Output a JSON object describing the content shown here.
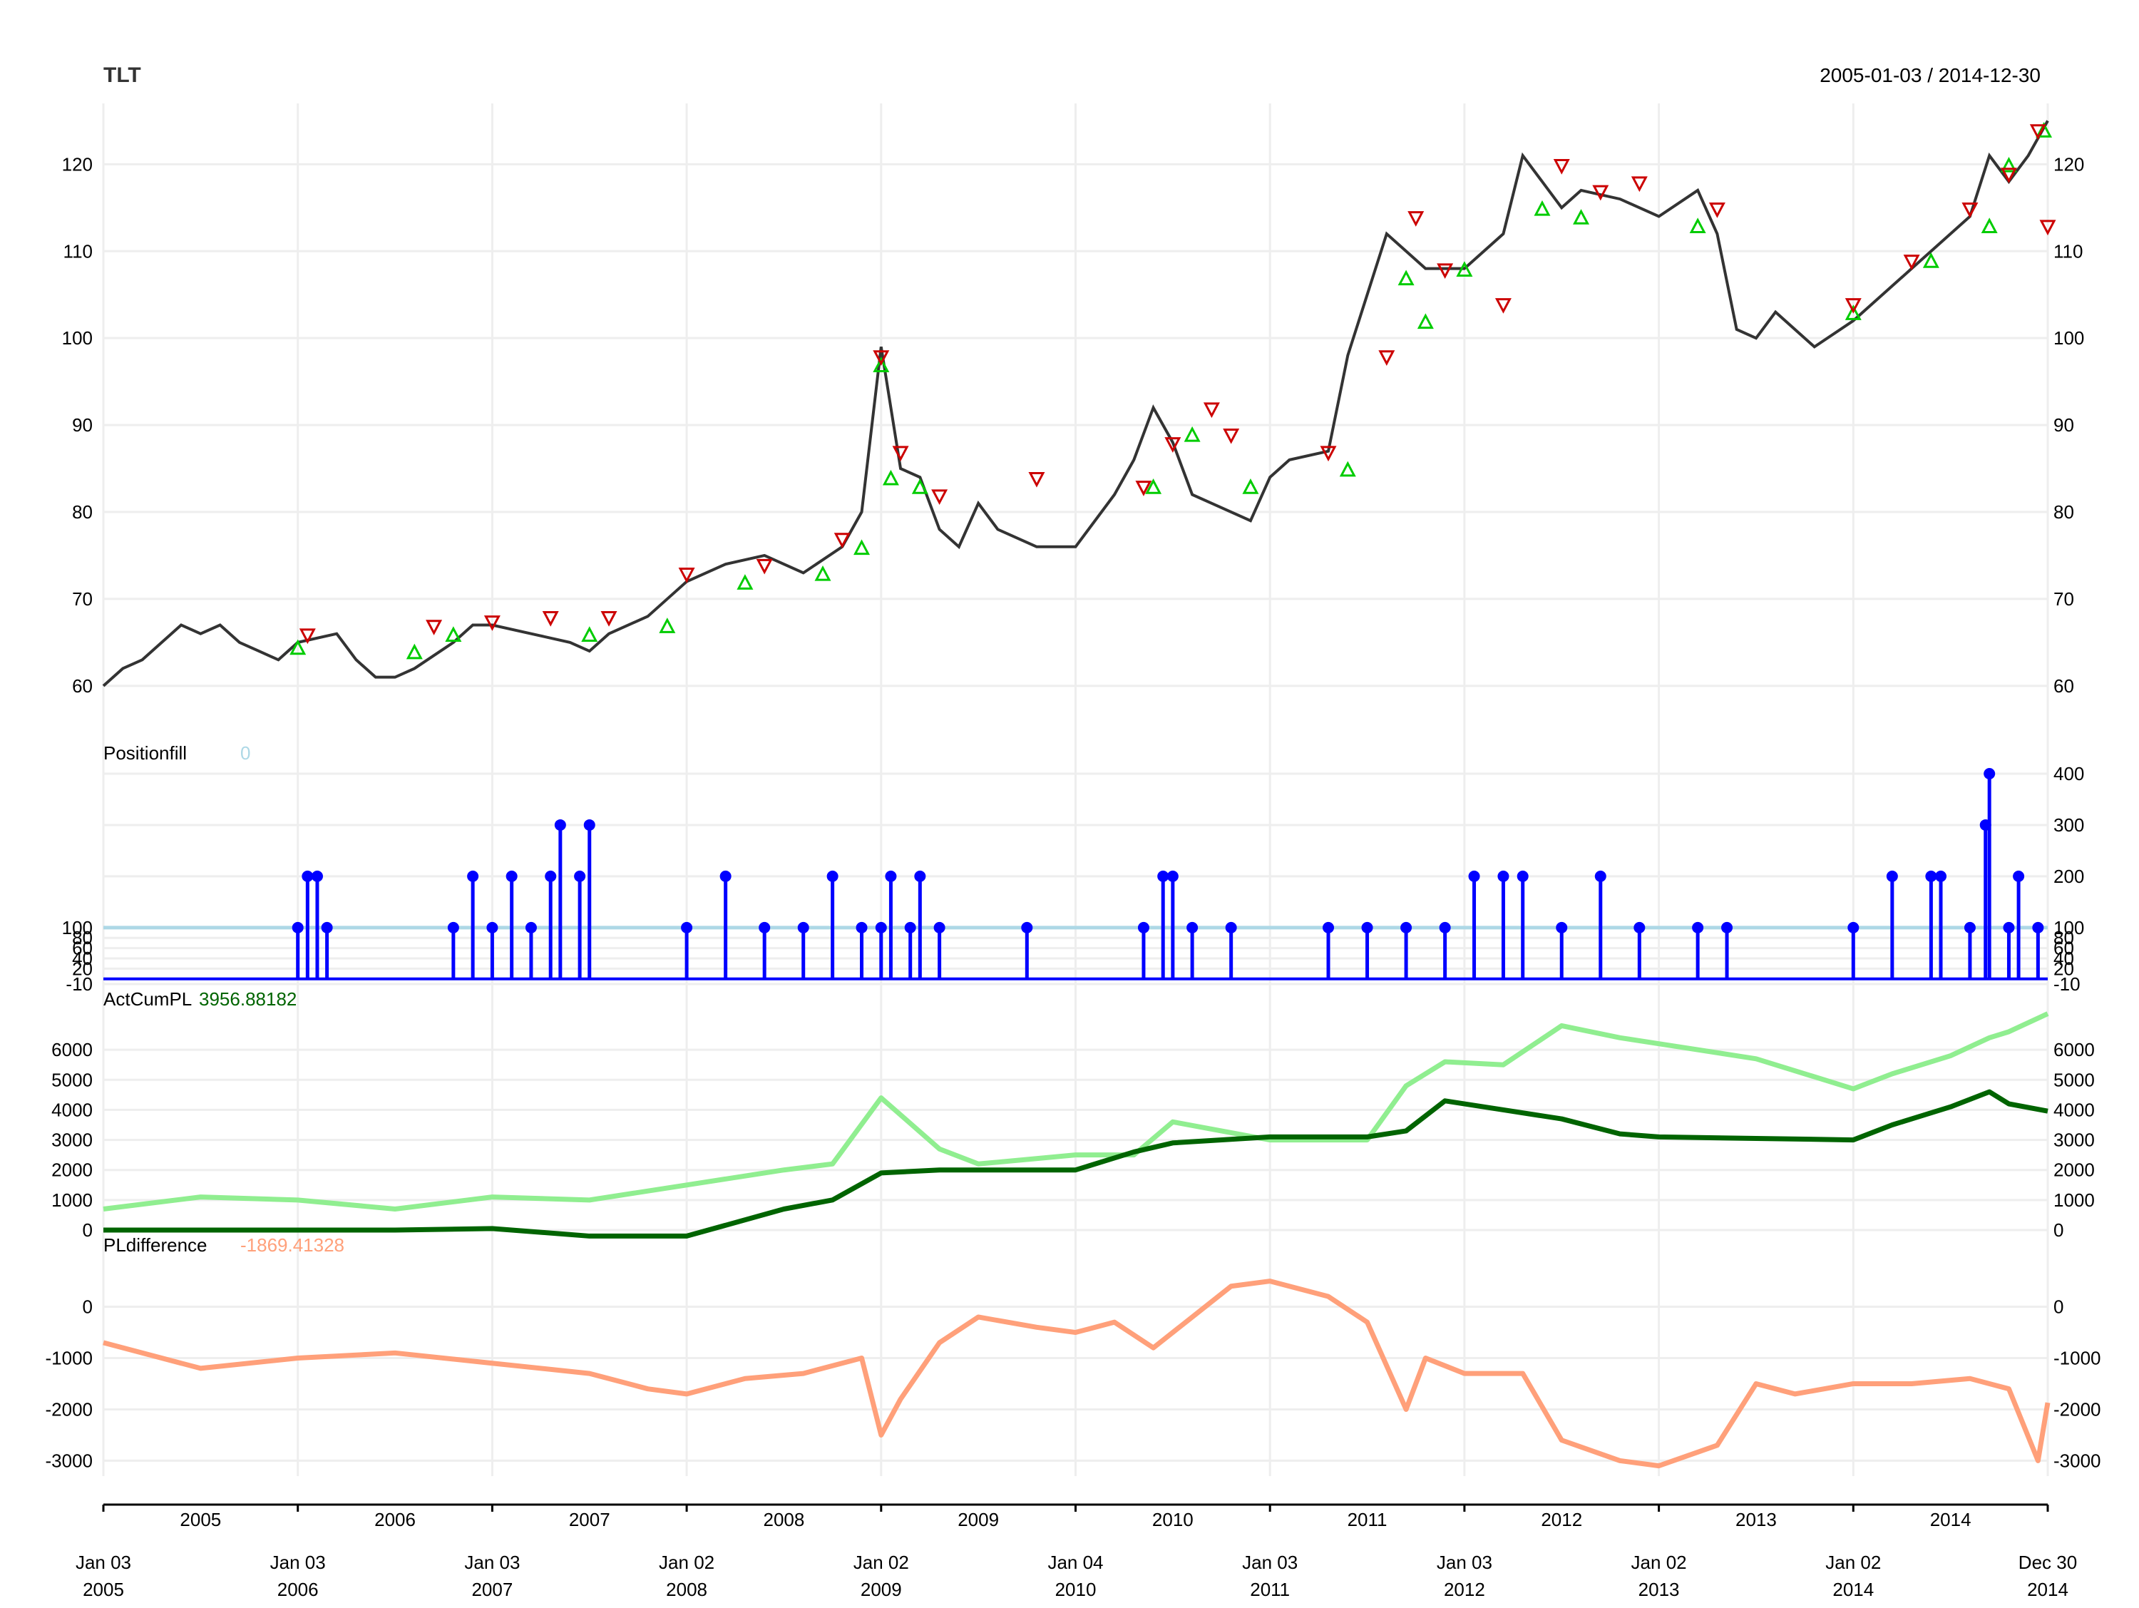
{
  "header": {
    "symbol": "TLT",
    "date_range": "2005-01-03 / 2014-12-30"
  },
  "colors": {
    "price": "#333333",
    "buy_marker": "#00cc00",
    "sell_marker": "#cc0000",
    "position_fill": "#0000ff",
    "position_fill_baseline": "#add8e6",
    "act_cum_pl": "#006400",
    "act_cum_pl_bench": "#90ee90",
    "pl_difference": "#ffa07a",
    "grid": "#eeeeee"
  },
  "chart_data": [
    {
      "panel": "price",
      "type": "line",
      "title": "TLT",
      "date_range": "2005-01-03 / 2014-12-30",
      "ylim": [
        54,
        127
      ],
      "yticks": [
        60,
        70,
        80,
        90,
        100,
        110,
        120
      ],
      "x": [
        2005.0,
        2005.1,
        2005.2,
        2005.3,
        2005.4,
        2005.5,
        2005.6,
        2005.7,
        2005.8,
        2005.9,
        2006.0,
        2006.2,
        2006.3,
        2006.4,
        2006.5,
        2006.6,
        2006.8,
        2006.9,
        2007.0,
        2007.2,
        2007.4,
        2007.5,
        2007.6,
        2007.8,
        2007.9,
        2008.0,
        2008.2,
        2008.4,
        2008.6,
        2008.8,
        2008.9,
        2009.0,
        2009.1,
        2009.2,
        2009.3,
        2009.4,
        2009.5,
        2009.6,
        2009.8,
        2010.0,
        2010.2,
        2010.3,
        2010.4,
        2010.5,
        2010.6,
        2010.7,
        2010.9,
        2011.0,
        2011.1,
        2011.3,
        2011.4,
        2011.6,
        2011.7,
        2011.8,
        2012.0,
        2012.2,
        2012.3,
        2012.4,
        2012.5,
        2012.6,
        2012.8,
        2013.0,
        2013.2,
        2013.3,
        2013.4,
        2013.5,
        2013.6,
        2013.8,
        2014.0,
        2014.1,
        2014.3,
        2014.5,
        2014.6,
        2014.7,
        2014.8,
        2014.9,
        2015.0
      ],
      "values": [
        60,
        62,
        63,
        65,
        67,
        66,
        67,
        65,
        64,
        63,
        65,
        66,
        63,
        61,
        61,
        62,
        65,
        67,
        67,
        66,
        65,
        64,
        66,
        68,
        70,
        72,
        74,
        75,
        73,
        76,
        80,
        99,
        85,
        84,
        78,
        76,
        81,
        78,
        76,
        76,
        82,
        86,
        92,
        88,
        82,
        81,
        79,
        84,
        86,
        87,
        98,
        112,
        110,
        108,
        108,
        112,
        121,
        118,
        115,
        117,
        116,
        114,
        117,
        112,
        101,
        100,
        103,
        99,
        102,
        104,
        108,
        112,
        114,
        121,
        118,
        121,
        125
      ],
      "buy_markers": [
        [
          2006.0,
          65.5
        ],
        [
          2006.6,
          65
        ],
        [
          2006.8,
          67
        ],
        [
          2007.5,
          67
        ],
        [
          2007.9,
          68
        ],
        [
          2008.3,
          73
        ],
        [
          2008.7,
          74
        ],
        [
          2008.9,
          77
        ],
        [
          2009.0,
          98
        ],
        [
          2009.05,
          85
        ],
        [
          2009.2,
          84
        ],
        [
          2010.4,
          84
        ],
        [
          2010.6,
          90
        ],
        [
          2010.9,
          84
        ],
        [
          2011.4,
          86
        ],
        [
          2011.7,
          108
        ],
        [
          2011.8,
          103
        ],
        [
          2012.0,
          109
        ],
        [
          2012.4,
          116
        ],
        [
          2012.6,
          115
        ],
        [
          2013.2,
          114
        ],
        [
          2014.0,
          104
        ],
        [
          2014.4,
          110
        ],
        [
          2014.7,
          114
        ],
        [
          2014.8,
          121
        ],
        [
          2014.98,
          125
        ]
      ],
      "sell_markers": [
        [
          2006.05,
          65
        ],
        [
          2006.7,
          66
        ],
        [
          2007.0,
          66.5
        ],
        [
          2007.3,
          67
        ],
        [
          2007.6,
          67
        ],
        [
          2008.0,
          72
        ],
        [
          2008.4,
          73
        ],
        [
          2008.8,
          76
        ],
        [
          2009.0,
          97
        ],
        [
          2009.1,
          86
        ],
        [
          2009.3,
          81
        ],
        [
          2009.8,
          83
        ],
        [
          2010.35,
          82
        ],
        [
          2010.5,
          87
        ],
        [
          2010.7,
          91
        ],
        [
          2010.8,
          88
        ],
        [
          2011.3,
          86
        ],
        [
          2011.6,
          97
        ],
        [
          2011.75,
          113
        ],
        [
          2011.9,
          107
        ],
        [
          2012.2,
          103
        ],
        [
          2012.5,
          119
        ],
        [
          2012.7,
          116
        ],
        [
          2012.9,
          117
        ],
        [
          2013.3,
          114
        ],
        [
          2014.0,
          103
        ],
        [
          2014.3,
          108
        ],
        [
          2014.6,
          114
        ],
        [
          2014.8,
          118
        ],
        [
          2014.95,
          123
        ],
        [
          2015.0,
          112
        ]
      ]
    },
    {
      "panel": "position_fill",
      "type": "line",
      "title": "Positionfill",
      "last_value": "0",
      "ylim": [
        -10,
        400
      ],
      "yticks_right": [
        -10,
        20,
        40,
        60,
        80,
        100,
        200,
        300,
        400
      ],
      "yticks_left": [
        -10,
        20,
        40,
        60,
        80,
        100
      ],
      "baseline": 100,
      "spikes": [
        [
          2006.0,
          100
        ],
        [
          2006.05,
          200
        ],
        [
          2006.1,
          200
        ],
        [
          2006.15,
          100
        ],
        [
          2006.8,
          100
        ],
        [
          2006.9,
          200
        ],
        [
          2007.0,
          100
        ],
        [
          2007.1,
          200
        ],
        [
          2007.2,
          100
        ],
        [
          2007.3,
          200
        ],
        [
          2007.35,
          300
        ],
        [
          2007.45,
          200
        ],
        [
          2007.5,
          300
        ],
        [
          2008.0,
          100
        ],
        [
          2008.2,
          200
        ],
        [
          2008.4,
          100
        ],
        [
          2008.6,
          100
        ],
        [
          2008.75,
          200
        ],
        [
          2008.9,
          100
        ],
        [
          2009.0,
          100
        ],
        [
          2009.05,
          200
        ],
        [
          2009.15,
          100
        ],
        [
          2009.2,
          200
        ],
        [
          2009.3,
          100
        ],
        [
          2009.75,
          100
        ],
        [
          2010.35,
          100
        ],
        [
          2010.45,
          200
        ],
        [
          2010.5,
          200
        ],
        [
          2010.6,
          100
        ],
        [
          2010.8,
          100
        ],
        [
          2011.3,
          100
        ],
        [
          2011.5,
          100
        ],
        [
          2011.7,
          100
        ],
        [
          2011.9,
          100
        ],
        [
          2012.05,
          200
        ],
        [
          2012.2,
          200
        ],
        [
          2012.3,
          200
        ],
        [
          2012.5,
          100
        ],
        [
          2012.7,
          200
        ],
        [
          2012.9,
          100
        ],
        [
          2013.2,
          100
        ],
        [
          2013.35,
          100
        ],
        [
          2014.0,
          100
        ],
        [
          2014.2,
          200
        ],
        [
          2014.4,
          200
        ],
        [
          2014.45,
          200
        ],
        [
          2014.6,
          100
        ],
        [
          2014.68,
          300
        ],
        [
          2014.7,
          400
        ],
        [
          2014.8,
          100
        ],
        [
          2014.85,
          200
        ],
        [
          2014.95,
          100
        ]
      ]
    },
    {
      "panel": "act_cum_pl",
      "type": "line",
      "title": "ActCumPL",
      "last_value": "3956.88182",
      "ylim": [
        0,
        7000
      ],
      "yticks": [
        0,
        1000,
        2000,
        3000,
        4000,
        5000,
        6000
      ],
      "x": [
        2005.0,
        2005.5,
        2006.0,
        2006.5,
        2007.0,
        2007.5,
        2008.0,
        2008.5,
        2008.75,
        2009.0,
        2009.3,
        2009.5,
        2010.0,
        2010.3,
        2010.5,
        2011.0,
        2011.5,
        2011.7,
        2011.9,
        2012.2,
        2012.5,
        2012.8,
        2013.0,
        2013.5,
        2014.0,
        2014.2,
        2014.5,
        2014.7,
        2014.8,
        2015.0
      ],
      "series": [
        {
          "values": [
            0,
            0,
            0,
            0,
            50,
            -200,
            -200,
            700,
            1000,
            1900,
            2000,
            2000,
            2000,
            2600,
            2900,
            3100,
            3100,
            3300,
            4300,
            4000,
            3700,
            3200,
            3100,
            3050,
            3000,
            3500,
            4100,
            4600,
            4200,
            3957
          ]
        },
        {
          "values": [
            700,
            1100,
            1000,
            700,
            1100,
            1000,
            1500,
            2000,
            2200,
            4400,
            2700,
            2200,
            2500,
            2500,
            3600,
            3000,
            3000,
            4800,
            5600,
            5500,
            6800,
            6400,
            6200,
            5700,
            4700,
            5200,
            5800,
            6400,
            6600,
            7200
          ]
        }
      ]
    },
    {
      "panel": "pl_difference",
      "type": "line",
      "title": "PLdifference",
      "last_value": "-1869.41328",
      "ylim": [
        -3300,
        800
      ],
      "yticks": [
        -3000,
        -2000,
        -1000,
        0
      ],
      "x": [
        2005.0,
        2005.5,
        2006.0,
        2006.5,
        2007.0,
        2007.5,
        2007.8,
        2008.0,
        2008.3,
        2008.6,
        2008.9,
        2009.0,
        2009.1,
        2009.3,
        2009.5,
        2009.8,
        2010.0,
        2010.2,
        2010.4,
        2010.6,
        2010.8,
        2011.0,
        2011.3,
        2011.5,
        2011.7,
        2011.8,
        2012.0,
        2012.3,
        2012.5,
        2012.8,
        2013.0,
        2013.3,
        2013.5,
        2013.7,
        2014.0,
        2014.3,
        2014.6,
        2014.8,
        2014.95,
        2015.0
      ],
      "values": [
        -700,
        -1200,
        -1000,
        -900,
        -1100,
        -1300,
        -1600,
        -1700,
        -1400,
        -1300,
        -1000,
        -2500,
        -1800,
        -700,
        -200,
        -400,
        -500,
        -300,
        -800,
        -200,
        400,
        500,
        200,
        -300,
        -2000,
        -1000,
        -1300,
        -1300,
        -2600,
        -3000,
        -3100,
        -2700,
        -1500,
        -1700,
        -1500,
        -1500,
        -1400,
        -1600,
        -3000,
        -1869
      ]
    }
  ],
  "x_axis": {
    "year_labels": [
      "2005",
      "2006",
      "2007",
      "2008",
      "2009",
      "2010",
      "2011",
      "2012",
      "2013",
      "2014"
    ],
    "tick_labels_top": [
      "Jan 03",
      "Jan 03",
      "Jan 03",
      "Jan 02",
      "Jan 02",
      "Jan 04",
      "Jan 03",
      "Jan 03",
      "Jan 02",
      "Jan 02",
      "Dec 30"
    ],
    "tick_labels_bottom": [
      "2005",
      "2006",
      "2007",
      "2008",
      "2009",
      "2010",
      "2011",
      "2012",
      "2013",
      "2014",
      "2014"
    ],
    "tick_positions": [
      2005,
      2006,
      2007,
      2008,
      2009,
      2010,
      2011,
      2012,
      2013,
      2014,
      2015
    ]
  }
}
